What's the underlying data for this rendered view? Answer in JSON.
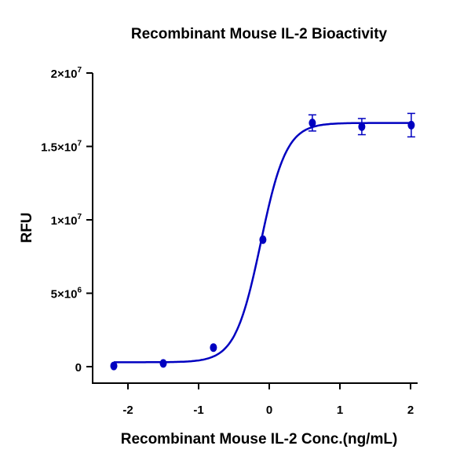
{
  "chart_data": {
    "type": "scatter",
    "title": "Recombinant Mouse IL-2 Bioactivity",
    "xlabel": "Recombinant Mouse IL-2 Conc.(ng/mL)",
    "ylabel": "RFU",
    "xlim": [
      -2.5,
      2.1
    ],
    "ylim": [
      0,
      20000000
    ],
    "x_scale": "log10 concentration",
    "grid": false,
    "color": "#0000c0",
    "x_ticks": [
      {
        "v": -2,
        "label": "-2"
      },
      {
        "v": -1,
        "label": "-1"
      },
      {
        "v": 0,
        "label": "0"
      },
      {
        "v": 1,
        "label": "1"
      },
      {
        "v": 2,
        "label": "2"
      }
    ],
    "y_ticks": [
      {
        "v": 0,
        "base": "0",
        "exp": ""
      },
      {
        "v": 5000000,
        "base": "5×10",
        "exp": "6"
      },
      {
        "v": 10000000,
        "base": "1×10",
        "exp": "7"
      },
      {
        "v": 15000000,
        "base": "1.5×10",
        "exp": "7"
      },
      {
        "v": 20000000,
        "base": "2×10",
        "exp": "7"
      }
    ],
    "points": [
      {
        "x": -2.2,
        "y": 50000,
        "err": 0
      },
      {
        "x": -1.5,
        "y": 220000,
        "err": 0
      },
      {
        "x": -0.79,
        "y": 1300000,
        "err": 0
      },
      {
        "x": -0.09,
        "y": 8650000,
        "err": 0
      },
      {
        "x": 0.61,
        "y": 16600000,
        "err": 550000
      },
      {
        "x": 1.31,
        "y": 16350000,
        "err": 550000
      },
      {
        "x": 2.01,
        "y": 16450000,
        "err": 800000
      }
    ],
    "fit": {
      "model": "4PL",
      "bottom": 300000,
      "top": 16600000,
      "logEC50": -0.12,
      "hill": 2.4,
      "x_range": [
        -2.2,
        2.01
      ]
    }
  }
}
